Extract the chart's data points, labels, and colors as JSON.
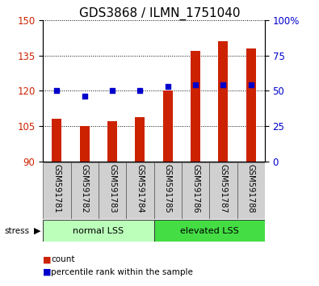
{
  "title": "GDS3868 / ILMN_1751040",
  "samples": [
    "GSM591781",
    "GSM591782",
    "GSM591783",
    "GSM591784",
    "GSM591785",
    "GSM591786",
    "GSM591787",
    "GSM591788"
  ],
  "counts": [
    108,
    105,
    107,
    109,
    120,
    137,
    141,
    138
  ],
  "percentiles": [
    50,
    46,
    50,
    50,
    53,
    54,
    54,
    54
  ],
  "group1_label": "normal LSS",
  "group2_label": "elevated LSS",
  "group1_count": 4,
  "group2_count": 4,
  "stress_label": "stress",
  "ylim_left": [
    90,
    150
  ],
  "ylim_right": [
    0,
    100
  ],
  "yticks_left": [
    90,
    105,
    120,
    135,
    150
  ],
  "yticks_right": [
    0,
    25,
    50,
    75,
    100
  ],
  "ytick_right_labels": [
    "0",
    "25",
    "50",
    "75",
    "100%"
  ],
  "bar_color": "#cc2200",
  "dot_color": "#0000cc",
  "bar_bottom": 90,
  "legend_items": [
    "count",
    "percentile rank within the sample"
  ],
  "bg_xticklabels": "#d0d0d0",
  "bg_group1": "#bbffbb",
  "bg_group2": "#44dd44",
  "title_fontsize": 11,
  "tick_fontsize": 8.5
}
